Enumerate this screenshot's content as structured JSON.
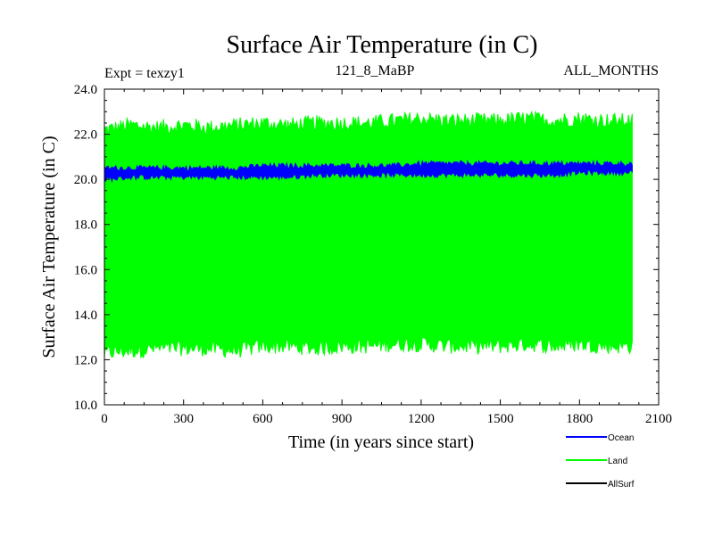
{
  "chart_data": {
    "type": "line",
    "title": "Surface Air Temperature (in C)",
    "subtitle_left": "Expt = texzy1",
    "subtitle_center": "121_8_MaBP",
    "subtitle_right": "ALL_MONTHS",
    "xlabel": "Time (in years since start)",
    "ylabel": "Surface Air Temperature (in C)",
    "xlim": [
      0,
      2100
    ],
    "ylim": [
      10.0,
      24.0
    ],
    "x_ticks": [
      0,
      300,
      600,
      900,
      1200,
      1500,
      1800,
      2100
    ],
    "x_tick_labels": [
      "0",
      "300",
      "600",
      "900",
      "1200",
      "1500",
      "1800",
      "2100"
    ],
    "y_ticks": [
      10,
      12,
      14,
      16,
      18,
      20,
      22,
      24
    ],
    "y_tick_labels": [
      "10.0",
      "12.0",
      "14.0",
      "16.0",
      "18.0",
      "20.0",
      "22.0",
      "24.0"
    ],
    "legend_position": "bottom-right, below plot",
    "series": [
      {
        "name": "Land",
        "color": "#00ff00",
        "description": "annual-cycle envelope (monthly minima / maxima)",
        "x": [
          0,
          100,
          200,
          300,
          400,
          500,
          600,
          700,
          800,
          900,
          1000,
          1100,
          1200,
          1300,
          1400,
          1500,
          1600,
          1700,
          1800,
          1900,
          2000
        ],
        "upper": [
          22.2,
          22.4,
          22.3,
          22.4,
          22.3,
          22.4,
          22.5,
          22.4,
          22.5,
          22.5,
          22.5,
          22.6,
          22.7,
          22.6,
          22.6,
          22.6,
          22.7,
          22.6,
          22.7,
          22.6,
          22.6
        ],
        "lower": [
          12.3,
          12.4,
          12.5,
          12.5,
          12.5,
          12.4,
          12.6,
          12.6,
          12.5,
          12.6,
          12.6,
          12.7,
          12.7,
          12.6,
          12.6,
          12.6,
          12.7,
          12.6,
          12.7,
          12.6,
          12.6
        ]
      },
      {
        "name": "Ocean",
        "color": "#0000ff",
        "description": "annual-cycle envelope (monthly minima / maxima)",
        "x": [
          0,
          100,
          200,
          300,
          400,
          500,
          600,
          700,
          800,
          900,
          1000,
          1100,
          1200,
          1300,
          1400,
          1500,
          1600,
          1700,
          1800,
          1900,
          2000
        ],
        "upper": [
          20.5,
          20.5,
          20.5,
          20.5,
          20.5,
          20.5,
          20.6,
          20.6,
          20.6,
          20.6,
          20.6,
          20.6,
          20.7,
          20.7,
          20.7,
          20.7,
          20.7,
          20.7,
          20.7,
          20.7,
          20.7
        ],
        "lower": [
          20.0,
          20.1,
          20.1,
          20.1,
          20.1,
          20.1,
          20.1,
          20.1,
          20.2,
          20.2,
          20.2,
          20.2,
          20.2,
          20.2,
          20.2,
          20.2,
          20.2,
          20.2,
          20.3,
          20.3,
          20.3
        ]
      },
      {
        "name": "AllSurf",
        "color": "#000000",
        "description": "not visible in plot area",
        "x": [],
        "upper": [],
        "lower": []
      }
    ]
  }
}
